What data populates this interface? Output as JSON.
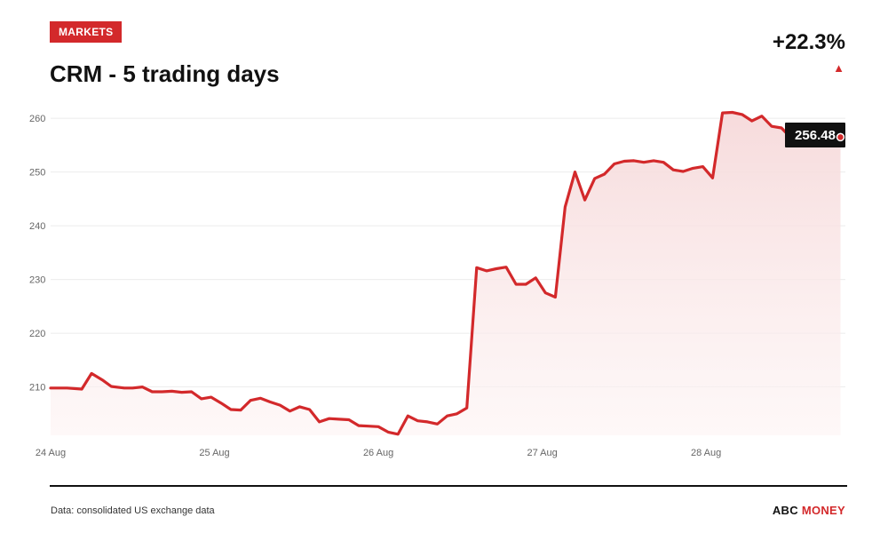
{
  "header": {
    "section_badge": "MARKETS",
    "title": "CRM - 5 trading days",
    "change": "+22.3%",
    "direction_icon": "up-triangle-icon"
  },
  "footer": {
    "source": "Data: consolidated US exchange data",
    "brand_part1": "ABC",
    "brand_part2": "MONEY"
  },
  "colors": {
    "accent": "#d3292b",
    "line": "#d3292b",
    "area_top": "#f6d9da",
    "grid": "#ececec",
    "label": "#666666",
    "callout_bg": "#111111"
  },
  "chart_data": {
    "type": "area",
    "title": "CRM - 5 trading days",
    "xlabel": "",
    "ylabel": "",
    "ylim": [
      201,
      262.5
    ],
    "yticks": [
      210,
      220,
      230,
      240,
      250,
      260
    ],
    "xlim": [
      0,
      4.85
    ],
    "xticks": [
      {
        "label": "24 Aug",
        "value": 0
      },
      {
        "label": "25 Aug",
        "value": 1
      },
      {
        "label": "26 Aug",
        "value": 2
      },
      {
        "label": "27 Aug",
        "value": 3
      },
      {
        "label": "28 Aug",
        "value": 4
      }
    ],
    "grid": true,
    "last_value_label": "256.48",
    "series": [
      {
        "points": [
          [
            0.0,
            209.8
          ],
          [
            0.1,
            209.8
          ],
          [
            0.19,
            209.6
          ],
          [
            0.25,
            212.5
          ],
          [
            0.32,
            211.2
          ],
          [
            0.37,
            210.1
          ],
          [
            0.45,
            209.8
          ],
          [
            0.5,
            209.8
          ],
          [
            0.56,
            210.0
          ],
          [
            0.62,
            209.1
          ],
          [
            0.68,
            209.1
          ],
          [
            0.74,
            209.2
          ],
          [
            0.8,
            209.0
          ],
          [
            0.86,
            209.1
          ],
          [
            0.92,
            207.8
          ],
          [
            0.98,
            208.1
          ],
          [
            1.04,
            207.0
          ],
          [
            1.1,
            205.8
          ],
          [
            1.16,
            205.7
          ],
          [
            1.22,
            207.5
          ],
          [
            1.28,
            207.9
          ],
          [
            1.34,
            207.2
          ],
          [
            1.4,
            206.6
          ],
          [
            1.46,
            205.5
          ],
          [
            1.52,
            206.3
          ],
          [
            1.58,
            205.8
          ],
          [
            1.64,
            203.5
          ],
          [
            1.7,
            204.1
          ],
          [
            1.76,
            204.0
          ],
          [
            1.82,
            203.9
          ],
          [
            1.88,
            202.8
          ],
          [
            1.94,
            202.7
          ],
          [
            2.0,
            202.6
          ],
          [
            2.06,
            201.6
          ],
          [
            2.12,
            201.2
          ],
          [
            2.18,
            204.6
          ],
          [
            2.24,
            203.7
          ],
          [
            2.3,
            203.5
          ],
          [
            2.36,
            203.1
          ],
          [
            2.42,
            204.6
          ],
          [
            2.48,
            205.0
          ],
          [
            2.54,
            206.1
          ],
          [
            2.6,
            232.2
          ],
          [
            2.66,
            231.6
          ],
          [
            2.72,
            232.0
          ],
          [
            2.78,
            232.3
          ],
          [
            2.84,
            229.1
          ],
          [
            2.9,
            229.1
          ],
          [
            2.96,
            230.3
          ],
          [
            3.02,
            227.5
          ],
          [
            3.08,
            226.7
          ],
          [
            3.14,
            243.5
          ],
          [
            3.2,
            250.0
          ],
          [
            3.26,
            244.8
          ],
          [
            3.32,
            248.8
          ],
          [
            3.38,
            249.6
          ],
          [
            3.44,
            251.5
          ],
          [
            3.5,
            252.0
          ],
          [
            3.56,
            252.1
          ],
          [
            3.62,
            251.8
          ],
          [
            3.68,
            252.1
          ],
          [
            3.74,
            251.8
          ],
          [
            3.8,
            250.4
          ],
          [
            3.86,
            250.1
          ],
          [
            3.92,
            250.7
          ],
          [
            3.98,
            251.0
          ],
          [
            4.04,
            248.9
          ],
          [
            4.1,
            261.0
          ],
          [
            4.16,
            261.1
          ],
          [
            4.22,
            260.7
          ],
          [
            4.28,
            259.5
          ],
          [
            4.34,
            260.4
          ],
          [
            4.4,
            258.5
          ],
          [
            4.46,
            258.2
          ],
          [
            4.52,
            256.3
          ],
          [
            4.58,
            256.8
          ],
          [
            4.64,
            256.5
          ],
          [
            4.7,
            256.5
          ],
          [
            4.76,
            256.5
          ],
          [
            4.82,
            256.48
          ]
        ]
      }
    ]
  }
}
